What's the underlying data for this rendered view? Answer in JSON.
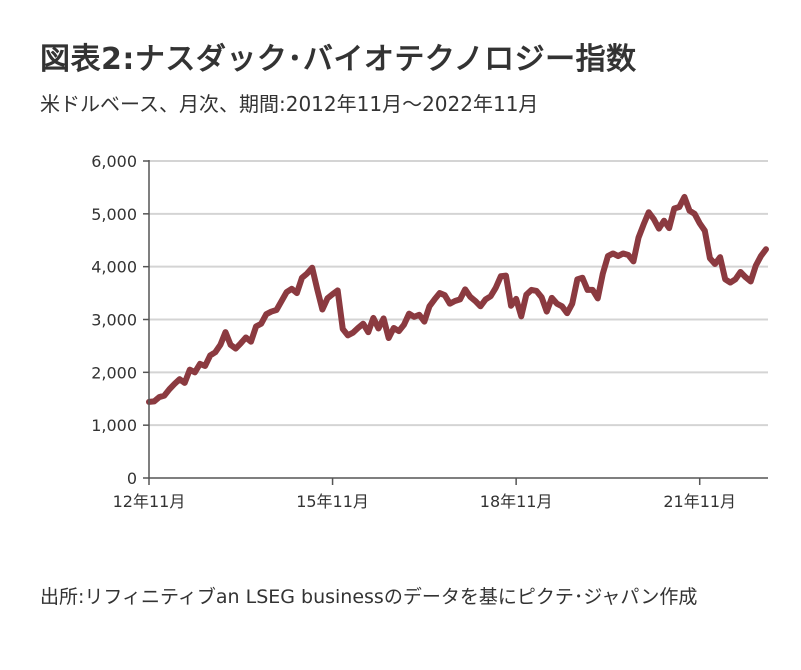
{
  "header": {
    "title": "図表2:ナスダック･バイオテクノロジー指数",
    "subtitle": "米ドルベース、月次、期間:2012年11月～2022年11月"
  },
  "footer": {
    "source": "出所:リフィニティブan LSEG businessのデータを基にピクテ･ジャパン作成"
  },
  "chart_data": {
    "type": "line",
    "title": "図表2:ナスダック･バイオテクノロジー指数",
    "subtitle": "米ドルベース、月次、期間:2012年11月～2022年11月",
    "xlabel": "",
    "ylabel": "",
    "ylim": [
      0,
      6000
    ],
    "yticks": [
      0,
      1000,
      2000,
      3000,
      4000,
      5000,
      6000
    ],
    "ytick_labels": [
      "0",
      "1,000",
      "2,000",
      "3,000",
      "4,000",
      "5,000",
      "6,000"
    ],
    "xtick_labels": [
      "12年11月",
      "15年11月",
      "18年11月",
      "21年11月"
    ],
    "xtick_indices": [
      0,
      36,
      72,
      108
    ],
    "grid": true,
    "legend": "none",
    "series_color": "#8b3a40",
    "series": [
      {
        "values": [
          1440,
          1450,
          1530,
          1560,
          1680,
          1780,
          1870,
          1800,
          2050,
          2000,
          2160,
          2120,
          2320,
          2380,
          2520,
          2760,
          2520,
          2450,
          2550,
          2660,
          2580,
          2870,
          2920,
          3100,
          3150,
          3180,
          3350,
          3520,
          3580,
          3500,
          3790,
          3870,
          3980,
          3570,
          3190,
          3400,
          3480,
          3550,
          2820,
          2700,
          2750,
          2840,
          2920,
          2760,
          3030,
          2830,
          3020,
          2650,
          2840,
          2780,
          2900,
          3110,
          3050,
          3090,
          2960,
          3250,
          3380,
          3500,
          3460,
          3300,
          3350,
          3380,
          3570,
          3430,
          3350,
          3250,
          3380,
          3440,
          3600,
          3820,
          3830,
          3260,
          3390,
          3060,
          3470,
          3560,
          3540,
          3420,
          3150,
          3410,
          3300,
          3250,
          3120,
          3300,
          3760,
          3790,
          3560,
          3560,
          3400,
          3870,
          4200,
          4250,
          4200,
          4250,
          4220,
          4100,
          4550,
          4800,
          5030,
          4900,
          4720,
          4870,
          4730,
          5100,
          5130,
          5320,
          5060,
          5000,
          4820,
          4680,
          4160,
          4050,
          4180,
          3760,
          3700,
          3760,
          3900,
          3800,
          3720,
          4020,
          4200,
          4330
        ]
      }
    ]
  }
}
